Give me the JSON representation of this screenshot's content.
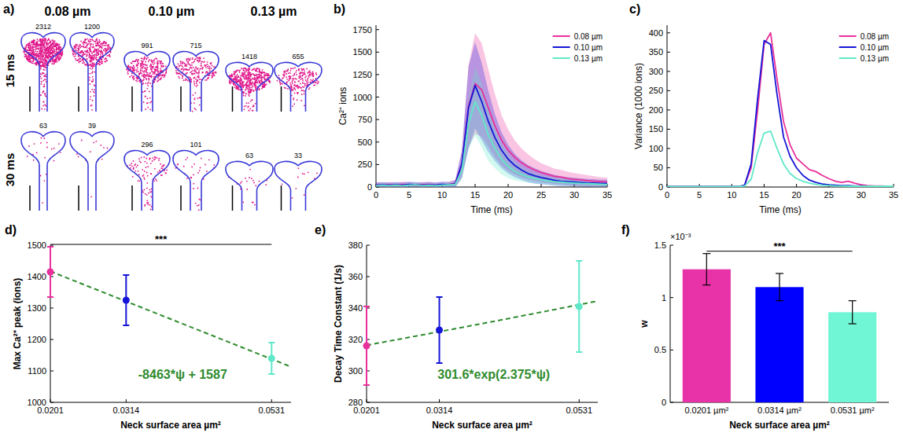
{
  "diagram": {
    "panel_label": "a)",
    "columns": [
      "0.08 µm",
      "0.10 µm",
      "0.13 µm"
    ],
    "rows": [
      "15 ms",
      "30 ms"
    ],
    "counts": [
      [
        2312,
        1200,
        991,
        715,
        1418,
        655
      ],
      [
        63,
        39,
        296,
        101,
        63,
        33
      ]
    ]
  },
  "chart_data": [
    {
      "panel_label": "b)",
      "type": "line",
      "x_label": "Time (ms)",
      "y_label": "Ca²⁺ ions",
      "x": [
        0,
        1,
        2,
        3,
        4,
        5,
        6,
        7,
        8,
        9,
        10,
        11,
        12,
        13,
        14,
        15,
        16,
        17,
        18,
        19,
        20,
        21,
        22,
        23,
        24,
        25,
        26,
        27,
        28,
        29,
        30,
        31,
        32,
        33,
        34,
        35
      ],
      "series": [
        {
          "name": "0.08 µm",
          "color": "#e8309a",
          "values": [
            25,
            20,
            25,
            20,
            30,
            25,
            20,
            25,
            30,
            20,
            25,
            30,
            40,
            250,
            900,
            1150,
            1080,
            880,
            680,
            520,
            410,
            330,
            270,
            225,
            190,
            160,
            140,
            120,
            110,
            95,
            85,
            80,
            70,
            65,
            60,
            55
          ],
          "std": [
            30,
            30,
            30,
            30,
            30,
            30,
            30,
            30,
            30,
            30,
            30,
            30,
            40,
            150,
            450,
            560,
            520,
            430,
            350,
            280,
            230,
            190,
            160,
            140,
            120,
            105,
            95,
            85,
            80,
            75,
            70,
            65,
            60,
            55,
            50,
            50
          ]
        },
        {
          "name": "0.10 µm",
          "color": "#1515d8",
          "values": [
            20,
            25,
            20,
            25,
            20,
            30,
            25,
            20,
            25,
            20,
            30,
            25,
            35,
            260,
            880,
            1130,
            950,
            730,
            550,
            410,
            310,
            240,
            190,
            150,
            125,
            105,
            90,
            75,
            65,
            60,
            55,
            50,
            45,
            45,
            40,
            40
          ],
          "std": [
            30,
            30,
            30,
            30,
            30,
            30,
            30,
            30,
            30,
            30,
            30,
            30,
            40,
            150,
            460,
            480,
            430,
            340,
            260,
            200,
            160,
            130,
            110,
            95,
            85,
            75,
            65,
            60,
            55,
            50,
            48,
            46,
            44,
            42,
            40,
            40
          ]
        },
        {
          "name": "0.13 µm",
          "color": "#5fe8c8",
          "values": [
            15,
            20,
            15,
            20,
            15,
            20,
            25,
            15,
            20,
            15,
            20,
            25,
            30,
            180,
            700,
            950,
            800,
            580,
            430,
            310,
            230,
            175,
            140,
            115,
            95,
            80,
            70,
            60,
            55,
            50,
            45,
            40,
            38,
            35,
            32,
            30
          ],
          "std": [
            25,
            25,
            25,
            25,
            25,
            25,
            25,
            25,
            25,
            25,
            25,
            25,
            30,
            100,
            280,
            380,
            360,
            290,
            220,
            170,
            130,
            100,
            80,
            65,
            55,
            48,
            44,
            40,
            38,
            36,
            34,
            32,
            30,
            30,
            28,
            28
          ]
        }
      ],
      "xlim": [
        0,
        35
      ],
      "xticks": [
        0,
        5,
        10,
        15,
        20,
        25,
        30,
        35
      ],
      "ylim": [
        0,
        1800
      ],
      "yticks": [
        0,
        250,
        500,
        750,
        1000,
        1250,
        1500,
        1750
      ],
      "legend": "upper right"
    },
    {
      "panel_label": "c)",
      "type": "line",
      "x_label": "Time (ms)",
      "y_label": "Variance (1000 ions)",
      "x": [
        0,
        1,
        2,
        3,
        4,
        5,
        6,
        7,
        8,
        9,
        10,
        11,
        12,
        13,
        14,
        15,
        16,
        17,
        18,
        19,
        20,
        21,
        22,
        23,
        24,
        25,
        26,
        27,
        28,
        29,
        30,
        31,
        32,
        33,
        34,
        35
      ],
      "series": [
        {
          "name": "0.08 µm",
          "color": "#e8309a",
          "values": [
            1,
            1,
            1,
            1,
            1,
            1,
            1,
            1,
            1,
            1,
            1,
            1,
            5,
            50,
            200,
            370,
            400,
            280,
            170,
            110,
            75,
            60,
            45,
            40,
            30,
            22,
            15,
            12,
            15,
            10,
            6,
            4,
            3,
            3,
            2,
            2
          ]
        },
        {
          "name": "0.10 µm",
          "color": "#1515d8",
          "values": [
            1,
            1,
            1,
            1,
            1,
            1,
            1,
            1,
            1,
            1,
            1,
            1,
            5,
            60,
            230,
            380,
            370,
            240,
            130,
            80,
            50,
            30,
            18,
            12,
            8,
            6,
            5,
            4,
            4,
            3,
            3,
            2,
            2,
            2,
            2,
            2
          ]
        },
        {
          "name": "0.13 µm",
          "color": "#5fe8c8",
          "values": [
            1,
            1,
            1,
            1,
            1,
            1,
            1,
            1,
            1,
            1,
            1,
            1,
            3,
            20,
            90,
            140,
            145,
            100,
            60,
            35,
            22,
            15,
            10,
            7,
            5,
            4,
            3,
            3,
            2,
            2,
            2,
            2,
            2,
            2,
            2,
            2
          ]
        }
      ],
      "xlim": [
        0,
        35
      ],
      "xticks": [
        0,
        5,
        10,
        15,
        20,
        25,
        30,
        35
      ],
      "ylim": [
        0,
        420
      ],
      "yticks": [
        0,
        50,
        100,
        150,
        200,
        250,
        300,
        350,
        400
      ],
      "legend": "upper right"
    },
    {
      "panel_label": "d)",
      "type": "scatter",
      "x_label": "Neck surface area µm²",
      "y_label": "Max Ca²⁺ peak (ions)",
      "x": [
        0.0201,
        0.0314,
        0.0531
      ],
      "values": [
        1415,
        1325,
        1140
      ],
      "errors": [
        80,
        80,
        50
      ],
      "colors": [
        "#e8309a",
        "#1515d8",
        "#5fe8c8"
      ],
      "marker": "circle",
      "xlim": [
        0.0201,
        0.056
      ],
      "xticks": [
        0.0201,
        0.0314,
        0.0531
      ],
      "ylim": [
        1000,
        1500
      ],
      "yticks": [
        1000,
        1100,
        1200,
        1300,
        1400,
        1500
      ],
      "fit": {
        "type": "linear",
        "equation": "-8463*ψ + 1587",
        "slope": -8463,
        "intercept": 1587,
        "color": "#2e8b2e",
        "line_style": "dashed"
      },
      "significance": {
        "label": "***",
        "between": [
          0,
          2
        ]
      }
    },
    {
      "panel_label": "e)",
      "type": "scatter",
      "x_label": "Neck surface area µm²",
      "y_label": "Decay Time Constant (1/s)",
      "x": [
        0.0201,
        0.0314,
        0.0531
      ],
      "values": [
        316,
        326,
        341
      ],
      "errors": [
        25,
        21,
        29
      ],
      "colors": [
        "#e8309a",
        "#1515d8",
        "#5fe8c8"
      ],
      "marker": "circle",
      "xlim": [
        0.0201,
        0.056
      ],
      "xticks": [
        0.0201,
        0.0314,
        0.0531
      ],
      "ylim": [
        280,
        380
      ],
      "yticks": [
        280,
        300,
        320,
        340,
        360,
        380
      ],
      "fit": {
        "type": "exponential",
        "equation": "301.6*exp(2.375*ψ)",
        "a": 301.6,
        "b": 2.375,
        "color": "#2e8b2e",
        "line_style": "dashed"
      }
    },
    {
      "panel_label": "f)",
      "type": "bar",
      "x_label": "Neck surface area µm²",
      "y_label": "w",
      "y_scale_label": "×10⁻³",
      "categories": [
        "0.0201 µm²",
        "0.0314 µm²",
        "0.0531 µm²"
      ],
      "values": [
        1.27,
        1.1,
        0.86
      ],
      "errors": [
        0.15,
        0.13,
        0.11
      ],
      "colors": [
        "#e832a8",
        "#0000ff",
        "#70f5d5"
      ],
      "ylim": [
        0,
        1.5
      ],
      "yticks": [
        0,
        0.5,
        1,
        1.5
      ],
      "significance": {
        "label": "***",
        "between": [
          0,
          2
        ]
      }
    }
  ]
}
